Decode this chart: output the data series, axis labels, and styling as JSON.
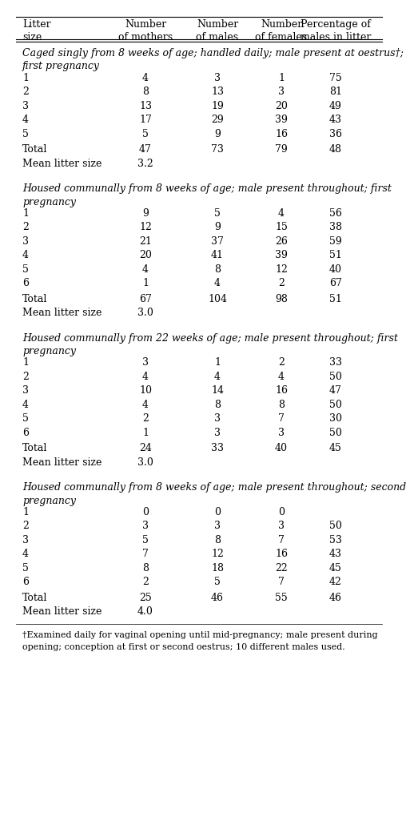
{
  "headers_line1": [
    "Litter",
    "Number",
    "Number",
    "Number",
    "Percentage of"
  ],
  "headers_line2": [
    "size",
    "of mothers",
    "of males",
    "of females",
    "males in litter"
  ],
  "sections": [
    {
      "title_line1": "Caged singly from 8 weeks of age; handled daily; male present at oestrus†;",
      "title_line2": "first pregnancy",
      "rows": [
        [
          "1",
          "4",
          "3",
          "1",
          "75"
        ],
        [
          "2",
          "8",
          "13",
          "3",
          "81"
        ],
        [
          "3",
          "13",
          "19",
          "20",
          "49"
        ],
        [
          "4",
          "17",
          "29",
          "39",
          "43"
        ],
        [
          "5",
          "5",
          "9",
          "16",
          "36"
        ]
      ],
      "total_row": [
        "Total",
        "47",
        "73",
        "79",
        "48"
      ],
      "mean_row": [
        "Mean litter size",
        "3.2",
        "",
        "",
        ""
      ]
    },
    {
      "title_line1": "Housed communally from 8 weeks of age; male present throughout; first",
      "title_line2": "pregnancy",
      "rows": [
        [
          "1",
          "9",
          "5",
          "4",
          "56"
        ],
        [
          "2",
          "12",
          "9",
          "15",
          "38"
        ],
        [
          "3",
          "21",
          "37",
          "26",
          "59"
        ],
        [
          "4",
          "20",
          "41",
          "39",
          "51"
        ],
        [
          "5",
          "4",
          "8",
          "12",
          "40"
        ],
        [
          "6",
          "1",
          "4",
          "2",
          "67"
        ]
      ],
      "total_row": [
        "Total",
        "67",
        "104",
        "98",
        "51"
      ],
      "mean_row": [
        "Mean litter size",
        "3.0",
        "",
        "",
        ""
      ]
    },
    {
      "title_line1": "Housed communally from 22 weeks of age; male present throughout; first",
      "title_line2": "pregnancy",
      "rows": [
        [
          "1",
          "3",
          "1",
          "2",
          "33"
        ],
        [
          "2",
          "4",
          "4",
          "4",
          "50"
        ],
        [
          "3",
          "10",
          "14",
          "16",
          "47"
        ],
        [
          "4",
          "4",
          "8",
          "8",
          "50"
        ],
        [
          "5",
          "2",
          "3",
          "7",
          "30"
        ],
        [
          "6",
          "1",
          "3",
          "3",
          "50"
        ]
      ],
      "total_row": [
        "Total",
        "24",
        "33",
        "40",
        "45"
      ],
      "mean_row": [
        "Mean litter size",
        "3.0",
        "",
        "",
        ""
      ]
    },
    {
      "title_line1": "Housed communally from 8 weeks of age; male present throughout; second",
      "title_line2": "pregnancy",
      "rows": [
        [
          "1",
          "0",
          "0",
          "0",
          ""
        ],
        [
          "2",
          "3",
          "3",
          "3",
          "50"
        ],
        [
          "3",
          "5",
          "8",
          "7",
          "53"
        ],
        [
          "4",
          "7",
          "12",
          "16",
          "43"
        ],
        [
          "5",
          "8",
          "18",
          "22",
          "45"
        ],
        [
          "6",
          "2",
          "5",
          "7",
          "42"
        ]
      ],
      "total_row": [
        "Total",
        "25",
        "46",
        "55",
        "46"
      ],
      "mean_row": [
        "Mean litter size",
        "4.0",
        "",
        "",
        ""
      ]
    }
  ],
  "footnote_line1": "†Examined daily for vaginal opening until mid-pregnancy; male present during",
  "footnote_line2": "opening; conception at first or second oestrus; 10 different males used.",
  "bg_color": "#ffffff",
  "text_color": "#000000",
  "font_size": 9.0,
  "footnote_font_size": 8.0
}
